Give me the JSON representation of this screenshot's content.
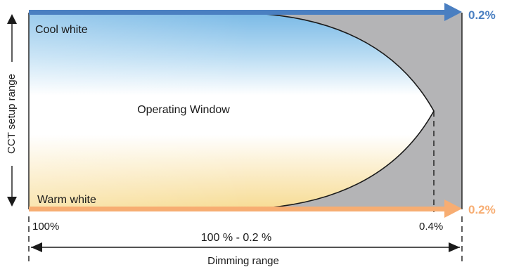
{
  "labels": {
    "cool_white": "Cool white",
    "warm_white": "Warm white",
    "operating_window": "Operating Window",
    "cct_axis": "CCT setup range",
    "top_arrow_value": "0.2%",
    "bottom_arrow_value": "0.2%",
    "left_tick": "100%",
    "right_tick": "0.4%",
    "range_text": "100 % - 0.2 %",
    "dimming_range": "Dimming range"
  },
  "colors": {
    "cool_arrow": "#4a7fc1",
    "warm_arrow": "#f7ad72",
    "cool_tint": "#79b9e6",
    "warm_tint": "#f7dc94",
    "excluded_region": "#b4b4b6",
    "line": "#1a1a1a"
  }
}
